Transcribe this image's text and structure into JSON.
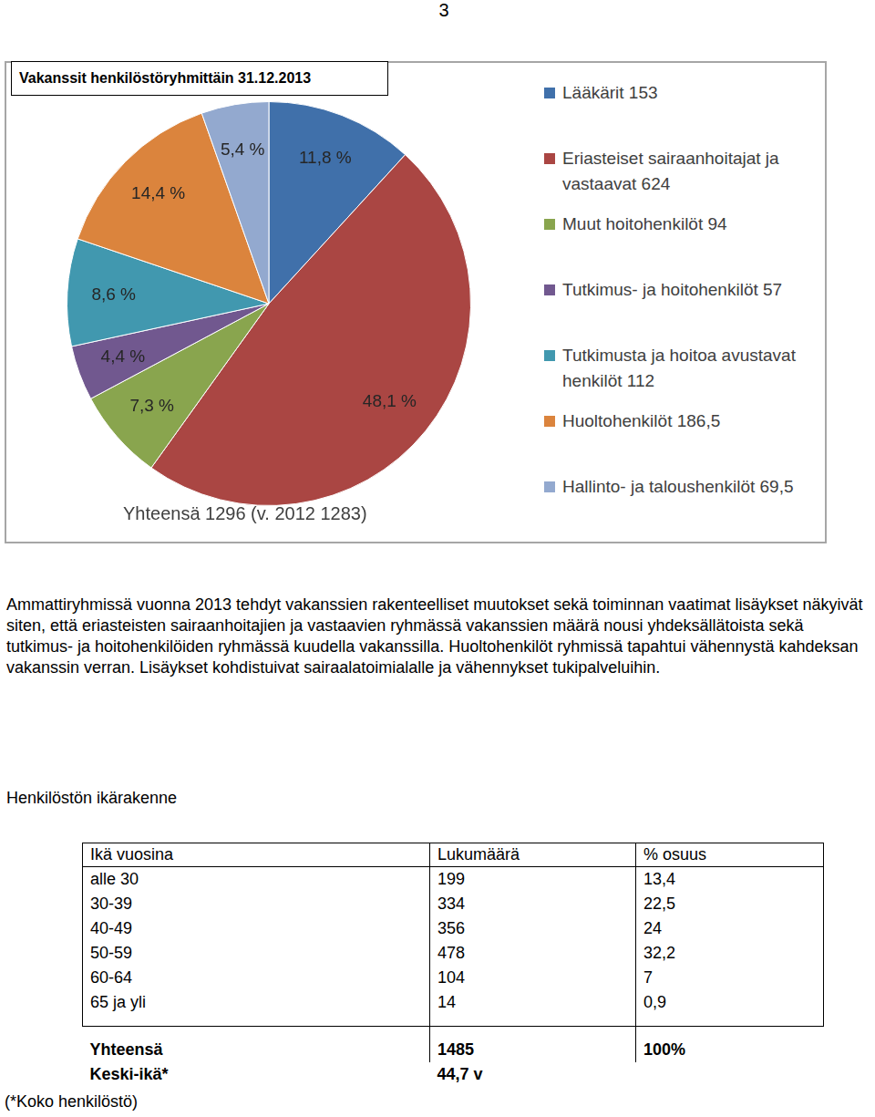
{
  "page_number": "3",
  "chart_data": {
    "type": "pie",
    "title": "Vakanssit henkilöstöryhmittäin 31.12.2013",
    "categories": [
      "Lääkärit 153",
      "Eriasteiset sairaanhoitajat ja vastaavat 624",
      "Muut hoitohenkilöt 94",
      "Tutkimus- ja hoitohenkilöt 57",
      "Tutkimusta ja hoitoa avustavat henkilöt 112",
      "Huoltohenkilöt 186,5",
      "Hallinto- ja taloushenkilöt 69,5"
    ],
    "values": [
      11.8,
      48.1,
      7.3,
      4.4,
      8.6,
      14.4,
      5.4
    ],
    "value_labels": [
      "11,8 %",
      "48,1 %",
      "7,3 %",
      "4,4 %",
      "8,6 %",
      "14,4 %",
      "5,4 %"
    ],
    "colors": [
      "#4070aa",
      "#aa4643",
      "#89a54e",
      "#71588f",
      "#4198af",
      "#db843d",
      "#93a9cf"
    ],
    "data_labels": true,
    "legend": "right",
    "annotation": "Yhteensä 1296 (v. 2012 1283)"
  },
  "paragraph": "Ammattiryhmissä vuonna 2013 tehdyt vakanssien rakenteelliset muutokset sekä toiminnan vaatimat lisäykset näkyivät siten, että eriasteisten sairaanhoitajien ja vastaavien ryhmässä vakanssien määrä nousi yhdeksällätoista sekä tutkimus- ja hoitohenkilöiden ryhmässä kuudella vakanssilla. Huoltohenkilöt ryhmissä tapahtui vähennystä kahdeksan vakanssin verran. Lisäykset kohdistuivat sairaalatoimialalle ja vähennykset tukipalveluihin.",
  "table": {
    "title": "Henkilöstön ikärakenne",
    "header": [
      "Ikä vuosina",
      "Lukumäärä",
      "% osuus"
    ],
    "rows": [
      [
        "alle 30",
        "199",
        "13,4"
      ],
      [
        "30-39",
        "334",
        "22,5"
      ],
      [
        "40-49",
        "356",
        "24"
      ],
      [
        "50-59",
        "478",
        "32,2"
      ],
      [
        "60-64",
        "104",
        "7"
      ],
      [
        "65 ja yli",
        "14",
        "0,9"
      ]
    ],
    "totals": [
      [
        "Yhteensä",
        "1485",
        "100%"
      ],
      [
        "Keski-ikä*",
        "44,7 v"
      ]
    ],
    "footnote": "(*Koko henkilöstö)"
  }
}
